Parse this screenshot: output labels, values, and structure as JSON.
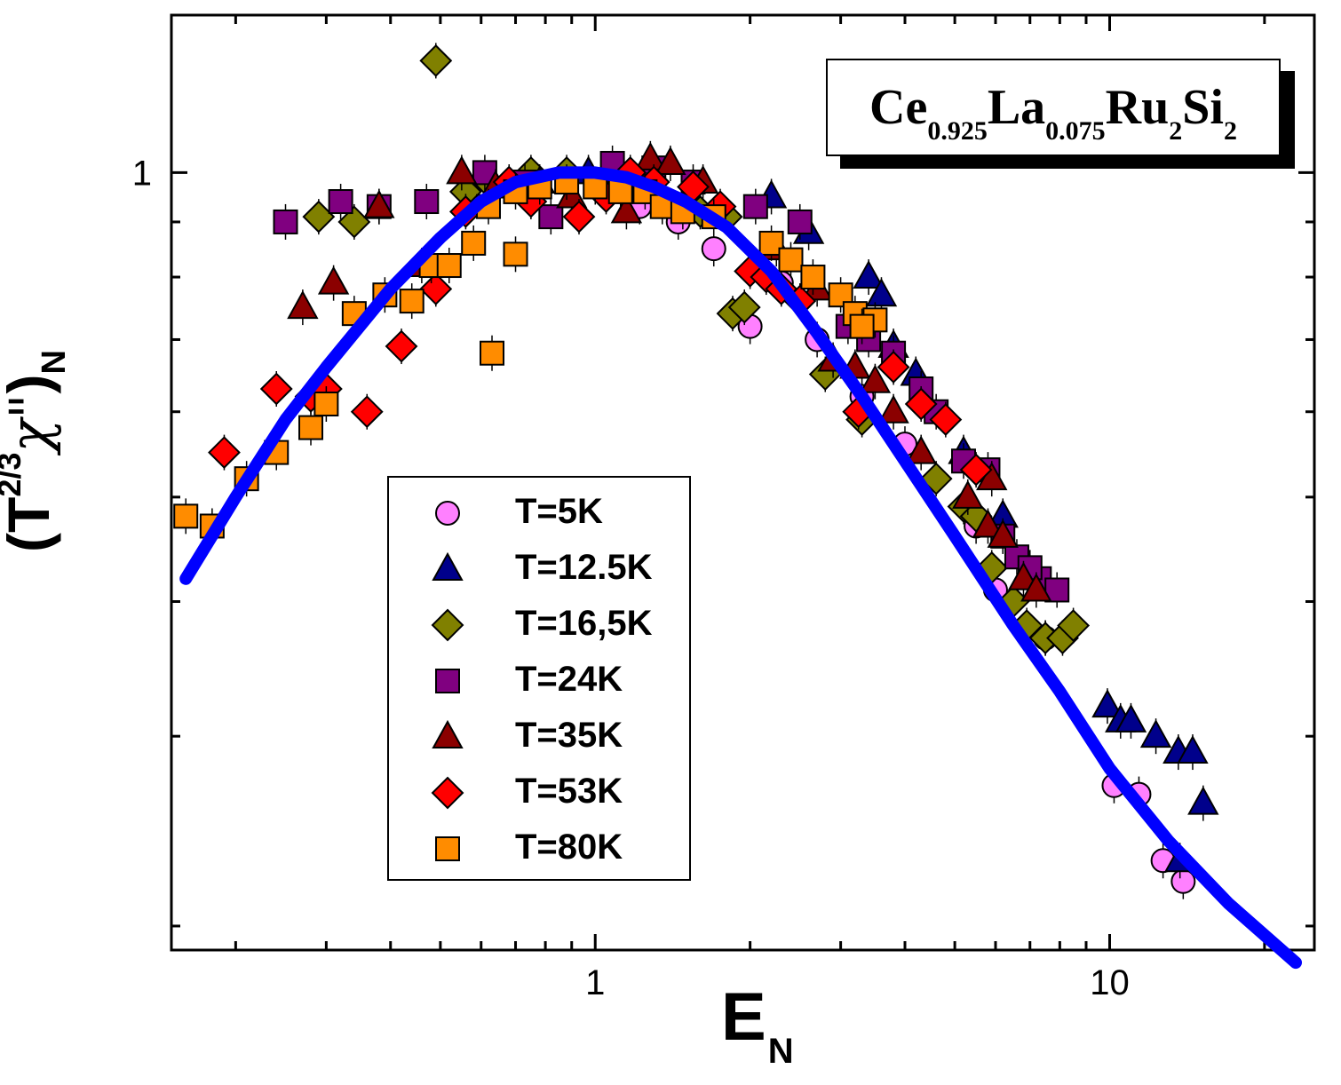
{
  "chart_data": {
    "type": "scatter",
    "xscale": "log",
    "yscale": "log",
    "xlim": [
      0.15,
      25
    ],
    "ylim": [
      0.19,
      1.4
    ],
    "x_ticks": [
      1,
      10
    ],
    "x_ticklabels": [
      "1",
      "10"
    ],
    "y_ticks": [
      1
    ],
    "y_ticklabels": [
      "1"
    ],
    "xlabel": "E",
    "xlabel_sub": "N",
    "ylabel": "(T",
    "ylabel_sup": "2/3",
    "ylabel_chi": "χ\"",
    "ylabel_close": ")",
    "ylabel_sub": "N",
    "annotation": {
      "parts": [
        {
          "text": "Ce",
          "sub": "0.925"
        },
        {
          "text": "La",
          "sub": "0.075"
        },
        {
          "text": "Ru",
          "sub": "2"
        },
        {
          "text": "Si",
          "sub": "2"
        }
      ]
    },
    "legend_position": "lower-left",
    "series": [
      {
        "name": "T=5K",
        "marker": "circle",
        "color": "#ff80ff",
        "points": [
          [
            1.12,
            0.99
          ],
          [
            1.22,
            0.93
          ],
          [
            1.45,
            0.9
          ],
          [
            1.7,
            0.85
          ],
          [
            2.0,
            0.72
          ],
          [
            2.3,
            0.79
          ],
          [
            2.7,
            0.7
          ],
          [
            3.3,
            0.62
          ],
          [
            4.0,
            0.56
          ],
          [
            5.5,
            0.47
          ],
          [
            6.0,
            0.41
          ],
          [
            7.5,
            0.37
          ],
          [
            10.2,
            0.27
          ],
          [
            11.4,
            0.265
          ],
          [
            12.7,
            0.23
          ],
          [
            13.9,
            0.22
          ]
        ]
      },
      {
        "name": "T=12.5K",
        "marker": "triangle",
        "color": "#00008b",
        "points": [
          [
            0.97,
            1.0
          ],
          [
            1.08,
            0.98
          ],
          [
            2.2,
            0.95
          ],
          [
            2.6,
            0.88
          ],
          [
            3.4,
            0.8
          ],
          [
            3.6,
            0.77
          ],
          [
            3.8,
            0.69
          ],
          [
            4.2,
            0.65
          ],
          [
            5.2,
            0.55
          ],
          [
            6.2,
            0.48
          ],
          [
            9.9,
            0.32
          ],
          [
            10.5,
            0.31
          ],
          [
            11.0,
            0.31
          ],
          [
            12.3,
            0.3
          ],
          [
            13.6,
            0.29
          ],
          [
            14.5,
            0.29
          ],
          [
            15.2,
            0.26
          ],
          [
            13.7,
            0.23
          ]
        ]
      },
      {
        "name": "T=16,5K",
        "marker": "diamond",
        "color": "#808000",
        "points": [
          [
            0.49,
            1.27
          ],
          [
            0.29,
            0.91
          ],
          [
            0.34,
            0.9
          ],
          [
            0.56,
            0.96
          ],
          [
            0.62,
            0.98
          ],
          [
            0.75,
            1.0
          ],
          [
            0.88,
            1.0
          ],
          [
            1.2,
            0.98
          ],
          [
            1.6,
            0.92
          ],
          [
            1.8,
            0.91
          ],
          [
            1.85,
            0.74
          ],
          [
            1.95,
            0.75
          ],
          [
            2.8,
            0.65
          ],
          [
            3.3,
            0.59
          ],
          [
            4.6,
            0.52
          ],
          [
            5.2,
            0.49
          ],
          [
            5.5,
            0.48
          ],
          [
            5.9,
            0.43
          ],
          [
            6.9,
            0.38
          ],
          [
            7.5,
            0.37
          ],
          [
            8.1,
            0.37
          ],
          [
            8.5,
            0.38
          ],
          [
            6.5,
            0.4
          ]
        ]
      },
      {
        "name": "T=24K",
        "marker": "square",
        "color": "#800080",
        "points": [
          [
            0.25,
            0.9
          ],
          [
            0.32,
            0.94
          ],
          [
            0.38,
            0.93
          ],
          [
            0.47,
            0.94
          ],
          [
            0.61,
            1.0
          ],
          [
            0.73,
            0.98
          ],
          [
            0.82,
            0.91
          ],
          [
            1.08,
            1.02
          ],
          [
            1.3,
            1.01
          ],
          [
            1.55,
            0.98
          ],
          [
            2.05,
            0.93
          ],
          [
            2.5,
            0.9
          ],
          [
            3.1,
            0.72
          ],
          [
            3.4,
            0.7
          ],
          [
            3.8,
            0.68
          ],
          [
            4.3,
            0.63
          ],
          [
            4.6,
            0.6
          ],
          [
            5.2,
            0.54
          ],
          [
            5.8,
            0.53
          ],
          [
            6.2,
            0.46
          ],
          [
            6.6,
            0.44
          ],
          [
            7.3,
            0.42
          ],
          [
            7.9,
            0.41
          ],
          [
            7.0,
            0.43
          ]
        ]
      },
      {
        "name": "T=35K",
        "marker": "triangle",
        "color": "#8b0000",
        "points": [
          [
            0.27,
            0.75
          ],
          [
            0.31,
            0.79
          ],
          [
            0.38,
            0.93
          ],
          [
            0.46,
            0.82
          ],
          [
            0.55,
            1.0
          ],
          [
            0.64,
            0.97
          ],
          [
            0.78,
            0.98
          ],
          [
            0.9,
            0.95
          ],
          [
            1.15,
            0.92
          ],
          [
            1.28,
            1.03
          ],
          [
            1.4,
            1.02
          ],
          [
            1.62,
            0.98
          ],
          [
            2.25,
            0.85
          ],
          [
            2.7,
            0.78
          ],
          [
            2.9,
            0.67
          ],
          [
            3.2,
            0.66
          ],
          [
            3.5,
            0.64
          ],
          [
            3.8,
            0.6
          ],
          [
            4.3,
            0.55
          ],
          [
            5.3,
            0.5
          ],
          [
            5.8,
            0.47
          ],
          [
            6.2,
            0.46
          ],
          [
            5.9,
            0.52
          ],
          [
            6.8,
            0.42
          ],
          [
            7.2,
            0.41
          ]
        ]
      },
      {
        "name": "T=53K",
        "marker": "diamond",
        "color": "#ff0000",
        "points": [
          [
            0.19,
            0.55
          ],
          [
            0.24,
            0.63
          ],
          [
            0.28,
            0.62
          ],
          [
            0.3,
            0.63
          ],
          [
            0.36,
            0.6
          ],
          [
            0.42,
            0.69
          ],
          [
            0.49,
            0.78
          ],
          [
            0.56,
            0.92
          ],
          [
            0.68,
            0.98
          ],
          [
            0.75,
            0.94
          ],
          [
            0.93,
            0.91
          ],
          [
            1.05,
            0.95
          ],
          [
            1.17,
            1.0
          ],
          [
            1.3,
            0.98
          ],
          [
            1.55,
            0.97
          ],
          [
            1.75,
            0.93
          ],
          [
            2.0,
            0.81
          ],
          [
            2.15,
            0.8
          ],
          [
            2.3,
            0.78
          ],
          [
            2.5,
            0.76
          ],
          [
            3.25,
            0.6
          ],
          [
            3.8,
            0.66
          ],
          [
            4.3,
            0.61
          ],
          [
            4.8,
            0.59
          ],
          [
            5.5,
            0.53
          ]
        ]
      },
      {
        "name": "T=80K",
        "marker": "square",
        "color": "#ff8c00",
        "points": [
          [
            0.16,
            0.48
          ],
          [
            0.18,
            0.47
          ],
          [
            0.21,
            0.52
          ],
          [
            0.24,
            0.55
          ],
          [
            0.28,
            0.58
          ],
          [
            0.3,
            0.61
          ],
          [
            0.34,
            0.74
          ],
          [
            0.39,
            0.77
          ],
          [
            0.44,
            0.76
          ],
          [
            0.48,
            0.82
          ],
          [
            0.52,
            0.82
          ],
          [
            0.58,
            0.86
          ],
          [
            0.62,
            0.93
          ],
          [
            0.63,
            0.68
          ],
          [
            0.7,
            0.84
          ],
          [
            0.7,
            0.96
          ],
          [
            0.78,
            0.97
          ],
          [
            0.88,
            0.98
          ],
          [
            1.0,
            0.97
          ],
          [
            1.12,
            0.96
          ],
          [
            1.25,
            0.96
          ],
          [
            1.35,
            0.93
          ],
          [
            1.48,
            0.92
          ],
          [
            1.7,
            0.91
          ],
          [
            2.2,
            0.86
          ],
          [
            2.4,
            0.83
          ],
          [
            2.65,
            0.8
          ],
          [
            3.0,
            0.77
          ],
          [
            3.2,
            0.74
          ],
          [
            3.5,
            0.73
          ],
          [
            3.3,
            0.72
          ]
        ]
      }
    ],
    "fit_curve": {
      "name": "fit",
      "color": "#0000ff",
      "x": [
        0.16,
        0.2,
        0.25,
        0.3,
        0.4,
        0.5,
        0.6,
        0.7,
        0.85,
        1.0,
        1.15,
        1.3,
        1.5,
        1.8,
        2.2,
        2.7,
        3.3,
        4.0,
        5.0,
        6.5,
        8.0,
        10.0,
        13.0,
        17.0,
        23.0
      ],
      "y": [
        0.42,
        0.5,
        0.59,
        0.66,
        0.78,
        0.87,
        0.94,
        0.98,
        1.0,
        1.0,
        0.99,
        0.97,
        0.94,
        0.89,
        0.81,
        0.71,
        0.62,
        0.54,
        0.46,
        0.38,
        0.33,
        0.28,
        0.24,
        0.21,
        0.185
      ]
    }
  }
}
